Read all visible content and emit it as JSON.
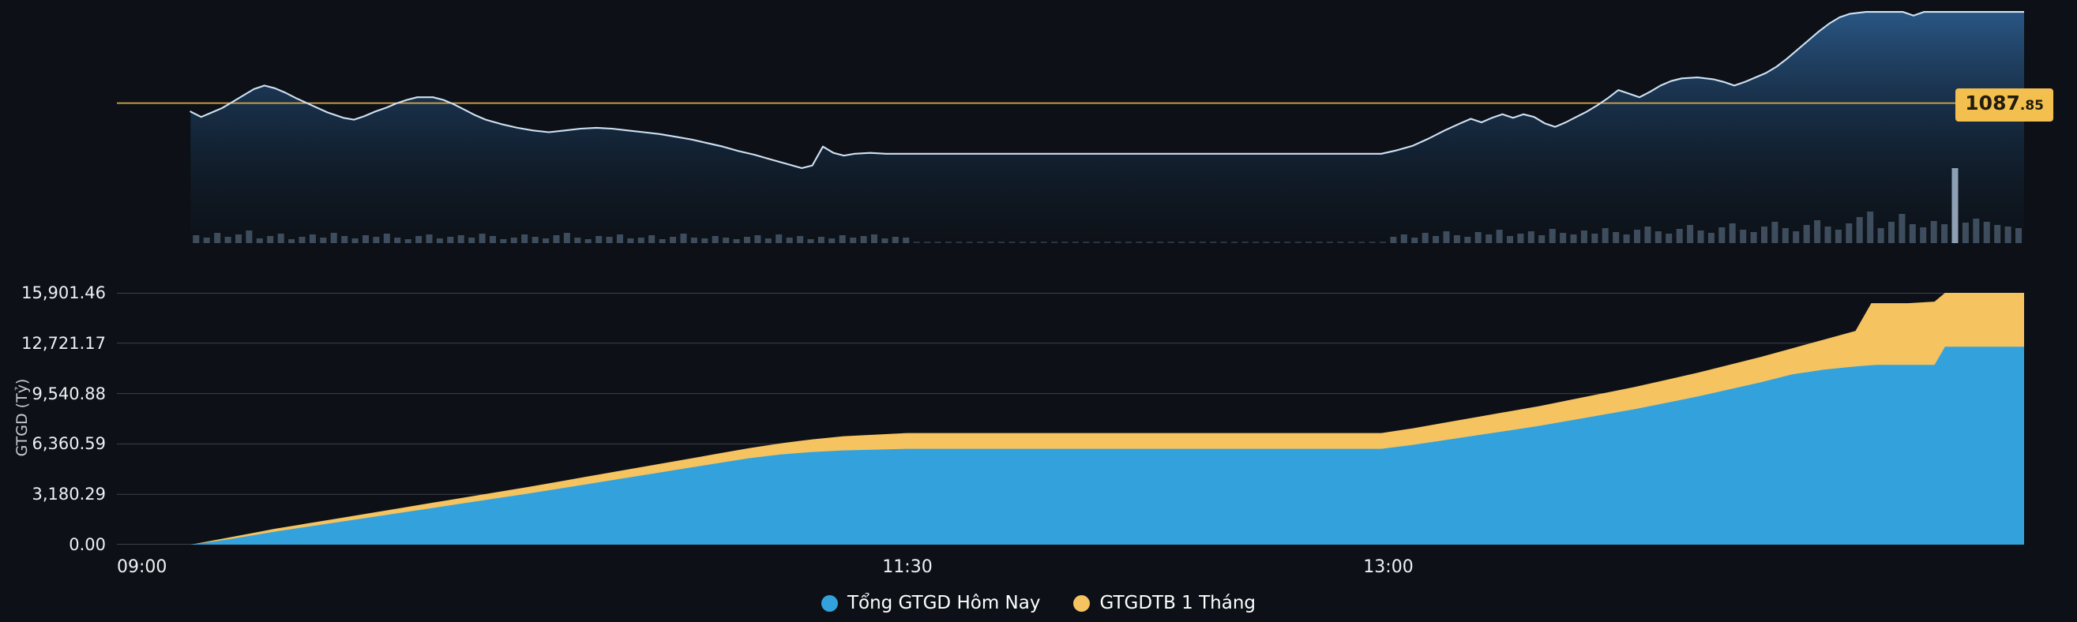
{
  "colors": {
    "page_bg": "#0d1117",
    "grid_line": "#3c424b",
    "axis_text": "#eef1f4",
    "axis_title_text": "#c8cdd3",
    "top_line": "#cfe2f4",
    "top_area_top": "#2e6094",
    "top_area_mid": "#1b3a5a",
    "top_area_bottom": "#0f1b29",
    "reference_line": "#d9a94a",
    "reference_badge_bg": "#f3bf4e",
    "reference_badge_text": "#211c0e",
    "volume_bar": "#46586a",
    "volume_spike": "#a3b9cf",
    "blue_area": "#33a2dc",
    "yellow_area": "#f5c360",
    "legend_text": "#ffffff"
  },
  "top_chart": {
    "reference_value": "1087.85",
    "badge_int": "1087",
    "badge_dec": ".85"
  },
  "chart_data": [
    {
      "type": "line",
      "title": "Index intraday line with volume bars",
      "x_unit": "minutes since 09:00 (session 09:00-15:00, flat 11:30-13:00 lunch)",
      "x_range": [
        0,
        362
      ],
      "y_range": [
        1077.0,
        1098.8
      ],
      "reference_line": 1087.85,
      "line_points": [
        [
          14,
          1086.9
        ],
        [
          16,
          1086.3
        ],
        [
          18,
          1086.8
        ],
        [
          20,
          1087.3
        ],
        [
          22,
          1088.0
        ],
        [
          24,
          1088.7
        ],
        [
          26,
          1089.4
        ],
        [
          28,
          1089.8
        ],
        [
          30,
          1089.5
        ],
        [
          32,
          1089.0
        ],
        [
          34,
          1088.4
        ],
        [
          37,
          1087.6
        ],
        [
          40,
          1086.8
        ],
        [
          43,
          1086.2
        ],
        [
          45,
          1086.0
        ],
        [
          47,
          1086.4
        ],
        [
          49,
          1086.9
        ],
        [
          51,
          1087.3
        ],
        [
          53,
          1087.8
        ],
        [
          55,
          1088.2
        ],
        [
          57,
          1088.5
        ],
        [
          60,
          1088.5
        ],
        [
          62,
          1088.2
        ],
        [
          64,
          1087.7
        ],
        [
          66,
          1087.1
        ],
        [
          68,
          1086.5
        ],
        [
          70,
          1086.0
        ],
        [
          73,
          1085.5
        ],
        [
          76,
          1085.1
        ],
        [
          79,
          1084.8
        ],
        [
          82,
          1084.6
        ],
        [
          85,
          1084.8
        ],
        [
          88,
          1085.0
        ],
        [
          91,
          1085.1
        ],
        [
          94,
          1085.0
        ],
        [
          97,
          1084.8
        ],
        [
          100,
          1084.6
        ],
        [
          103,
          1084.4
        ],
        [
          106,
          1084.1
        ],
        [
          109,
          1083.8
        ],
        [
          112,
          1083.4
        ],
        [
          115,
          1083.0
        ],
        [
          118,
          1082.5
        ],
        [
          121,
          1082.1
        ],
        [
          124,
          1081.6
        ],
        [
          127,
          1081.1
        ],
        [
          130,
          1080.6
        ],
        [
          132,
          1080.9
        ],
        [
          134,
          1083.0
        ],
        [
          136,
          1082.3
        ],
        [
          138,
          1082.0
        ],
        [
          140,
          1082.2
        ],
        [
          143,
          1082.3
        ],
        [
          146,
          1082.2
        ],
        [
          150,
          1082.2
        ],
        [
          240,
          1082.2
        ],
        [
          243,
          1082.6
        ],
        [
          246,
          1083.1
        ],
        [
          249,
          1083.9
        ],
        [
          252,
          1084.8
        ],
        [
          255,
          1085.6
        ],
        [
          257,
          1086.1
        ],
        [
          259,
          1085.7
        ],
        [
          261,
          1086.2
        ],
        [
          263,
          1086.6
        ],
        [
          265,
          1086.2
        ],
        [
          267,
          1086.6
        ],
        [
          269,
          1086.3
        ],
        [
          271,
          1085.6
        ],
        [
          273,
          1085.2
        ],
        [
          275,
          1085.7
        ],
        [
          277,
          1086.3
        ],
        [
          279,
          1086.9
        ],
        [
          281,
          1087.6
        ],
        [
          283,
          1088.4
        ],
        [
          285,
          1089.3
        ],
        [
          287,
          1088.9
        ],
        [
          289,
          1088.5
        ],
        [
          291,
          1089.1
        ],
        [
          293,
          1089.8
        ],
        [
          295,
          1090.3
        ],
        [
          297,
          1090.6
        ],
        [
          300,
          1090.7
        ],
        [
          303,
          1090.5
        ],
        [
          305,
          1090.2
        ],
        [
          307,
          1089.8
        ],
        [
          309,
          1090.2
        ],
        [
          311,
          1090.7
        ],
        [
          313,
          1091.2
        ],
        [
          315,
          1091.9
        ],
        [
          317,
          1092.8
        ],
        [
          319,
          1093.8
        ],
        [
          321,
          1094.8
        ],
        [
          323,
          1095.8
        ],
        [
          325,
          1096.7
        ],
        [
          327,
          1097.4
        ],
        [
          329,
          1097.8
        ],
        [
          332,
          1098.0
        ],
        [
          336,
          1098.0
        ],
        [
          339,
          1098.0
        ],
        [
          341,
          1097.6
        ],
        [
          343,
          1098.0
        ],
        [
          347,
          1098.0
        ],
        [
          351,
          1098.0
        ],
        [
          355,
          1098.0
        ],
        [
          359,
          1098.0
        ],
        [
          362,
          1098.0
        ]
      ],
      "volume": {
        "unit": "relative",
        "bars": [
          0,
          0,
          0,
          0,
          0,
          0,
          0,
          10,
          7,
          13,
          8,
          11,
          16,
          6,
          9,
          12,
          5,
          8,
          11,
          7,
          13,
          9,
          6,
          10,
          8,
          12,
          7,
          5,
          9,
          11,
          6,
          8,
          10,
          7,
          12,
          9,
          5,
          7,
          11,
          8,
          6,
          10,
          13,
          7,
          5,
          9,
          8,
          11,
          6,
          7,
          10,
          5,
          8,
          12,
          7,
          6,
          9,
          7,
          5,
          8,
          10,
          6,
          11,
          7,
          9,
          5,
          8,
          6,
          10,
          7,
          9,
          11,
          6,
          8,
          7,
          2,
          2,
          2,
          2,
          2,
          2,
          2,
          2,
          2,
          2,
          2,
          2,
          2,
          2,
          2,
          2,
          2,
          2,
          2,
          2,
          2,
          2,
          2,
          2,
          2,
          2,
          2,
          2,
          2,
          2,
          2,
          2,
          2,
          2,
          2,
          2,
          2,
          2,
          2,
          2,
          2,
          2,
          2,
          2,
          2,
          8,
          11,
          7,
          13,
          9,
          15,
          10,
          8,
          14,
          11,
          17,
          9,
          12,
          15,
          10,
          18,
          13,
          11,
          16,
          12,
          19,
          14,
          11,
          17,
          21,
          15,
          12,
          18,
          23,
          16,
          13,
          20,
          25,
          17,
          14,
          21,
          27,
          19,
          15,
          23,
          29,
          21,
          17,
          25,
          33,
          40,
          19,
          27,
          37,
          24,
          20,
          28,
          24,
          95,
          26,
          31,
          27,
          23,
          21,
          19
        ]
      }
    },
    {
      "type": "area",
      "stacked_render": "yellow series drawn behind blue series; visible yellow band = avg minus today",
      "ylabel": "GTGD (Tỷ)",
      "x_unit": "minutes since 09:00",
      "x_range": [
        0,
        362
      ],
      "ylim": [
        0,
        15901.46
      ],
      "yticks": [
        "15,901.46",
        "12,721.17",
        "9,540.88",
        "6,360.59",
        "3,180.29",
        "0.00"
      ],
      "xticks": [
        {
          "label": "09:00",
          "t": 0
        },
        {
          "label": "11:30",
          "t": 150
        },
        {
          "label": "13:00",
          "t": 240
        }
      ],
      "series": [
        {
          "name": "Tổng GTGD Hôm Nay",
          "color": "#33a2dc",
          "points": [
            [
              14,
              0
            ],
            [
              18,
              180
            ],
            [
              22,
              380
            ],
            [
              26,
              600
            ],
            [
              30,
              820
            ],
            [
              36,
              1120
            ],
            [
              42,
              1420
            ],
            [
              48,
              1720
            ],
            [
              54,
              2020
            ],
            [
              60,
              2320
            ],
            [
              66,
              2620
            ],
            [
              72,
              2920
            ],
            [
              78,
              3220
            ],
            [
              84,
              3540
            ],
            [
              90,
              3860
            ],
            [
              96,
              4180
            ],
            [
              102,
              4500
            ],
            [
              108,
              4820
            ],
            [
              114,
              5140
            ],
            [
              120,
              5460
            ],
            [
              126,
              5700
            ],
            [
              132,
              5850
            ],
            [
              138,
              5950
            ],
            [
              144,
              6000
            ],
            [
              150,
              6050
            ],
            [
              240,
              6050
            ],
            [
              246,
              6300
            ],
            [
              252,
              6600
            ],
            [
              258,
              6900
            ],
            [
              264,
              7200
            ],
            [
              270,
              7500
            ],
            [
              276,
              7850
            ],
            [
              282,
              8200
            ],
            [
              288,
              8550
            ],
            [
              294,
              8950
            ],
            [
              300,
              9350
            ],
            [
              306,
              9800
            ],
            [
              312,
              10250
            ],
            [
              318,
              10750
            ],
            [
              324,
              11050
            ],
            [
              330,
              11250
            ],
            [
              334,
              11350
            ],
            [
              340,
              11350
            ],
            [
              345,
              11350
            ],
            [
              347,
              12500
            ],
            [
              352,
              12500
            ],
            [
              358,
              12500
            ],
            [
              362,
              12500
            ]
          ]
        },
        {
          "name": "GTGDTB 1 Tháng",
          "color": "#f5c360",
          "points": [
            [
              14,
              0
            ],
            [
              18,
              250
            ],
            [
              22,
              500
            ],
            [
              26,
              750
            ],
            [
              30,
              1000
            ],
            [
              36,
              1330
            ],
            [
              42,
              1660
            ],
            [
              48,
              1990
            ],
            [
              54,
              2320
            ],
            [
              60,
              2650
            ],
            [
              66,
              2980
            ],
            [
              72,
              3310
            ],
            [
              78,
              3640
            ],
            [
              84,
              3990
            ],
            [
              90,
              4340
            ],
            [
              96,
              4690
            ],
            [
              102,
              5040
            ],
            [
              108,
              5390
            ],
            [
              114,
              5740
            ],
            [
              120,
              6090
            ],
            [
              126,
              6400
            ],
            [
              132,
              6650
            ],
            [
              138,
              6850
            ],
            [
              144,
              6950
            ],
            [
              150,
              7050
            ],
            [
              240,
              7050
            ],
            [
              246,
              7350
            ],
            [
              252,
              7700
            ],
            [
              258,
              8050
            ],
            [
              264,
              8400
            ],
            [
              270,
              8750
            ],
            [
              276,
              9150
            ],
            [
              282,
              9550
            ],
            [
              288,
              9950
            ],
            [
              294,
              10400
            ],
            [
              300,
              10850
            ],
            [
              306,
              11350
            ],
            [
              312,
              11850
            ],
            [
              318,
              12400
            ],
            [
              324,
              12950
            ],
            [
              330,
              13500
            ],
            [
              333,
              15250
            ],
            [
              340,
              15250
            ],
            [
              345,
              15350
            ],
            [
              347,
              15901.46
            ],
            [
              352,
              15901.46
            ],
            [
              358,
              15901.46
            ],
            [
              362,
              15901.46
            ]
          ]
        }
      ]
    }
  ]
}
